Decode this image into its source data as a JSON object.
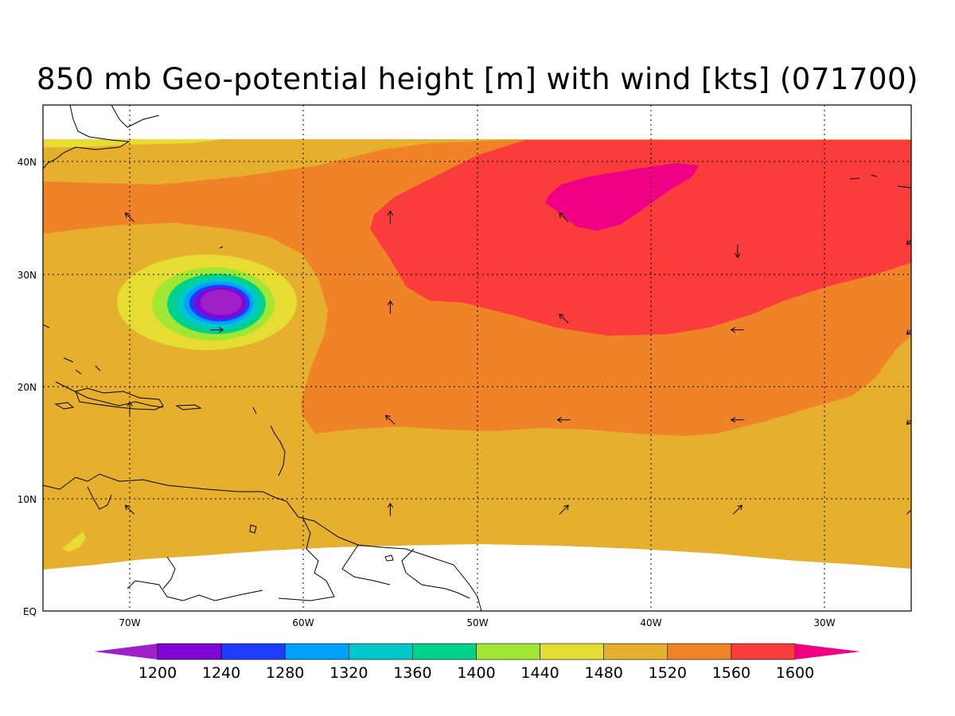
{
  "title": "850 mb Geo-potential height [m] with wind [kts] (071700)",
  "map": {
    "lon_range": [
      -75,
      -25
    ],
    "lat_range": [
      0,
      45
    ],
    "lon_labels": [
      "70W",
      "60W",
      "50W",
      "40W",
      "30W"
    ],
    "lat_labels": [
      "EQ",
      "10N",
      "20N",
      "30N",
      "40N"
    ],
    "grid": "dotted"
  },
  "colorbar": {
    "levels": [
      "1200",
      "1240",
      "1280",
      "1320",
      "1360",
      "1400",
      "1440",
      "1480",
      "1520",
      "1560",
      "1600"
    ],
    "colors": [
      "#a020c8",
      "#7f08d8",
      "#1e3cff",
      "#00a0ff",
      "#00c8c8",
      "#00d28c",
      "#a0e632",
      "#e6dc32",
      "#e6af2d",
      "#f08228",
      "#fa3c3c",
      "#f00082"
    ]
  },
  "features": {
    "low_center": {
      "lon": -65,
      "lat": 27.5,
      "min_height_band": "<1200"
    },
    "high_center": {
      "lon": -42,
      "lat": 37,
      "max_height_band": ">1600"
    }
  },
  "wind_arrows": [
    {
      "lon": -70,
      "lat": 35,
      "dir": "NW"
    },
    {
      "lon": -55,
      "lat": 35,
      "dir": "N"
    },
    {
      "lon": -45,
      "lat": 35,
      "dir": "NW"
    },
    {
      "lon": -35,
      "lat": 32,
      "dir": "S"
    },
    {
      "lon": -25,
      "lat": 33,
      "dir": "SW"
    },
    {
      "lon": -65,
      "lat": 25,
      "dir": "E"
    },
    {
      "lon": -55,
      "lat": 27,
      "dir": "N"
    },
    {
      "lon": -45,
      "lat": 26,
      "dir": "NW"
    },
    {
      "lon": -35,
      "lat": 25,
      "dir": "W"
    },
    {
      "lon": -25,
      "lat": 25,
      "dir": "SW"
    },
    {
      "lon": -70,
      "lat": 18,
      "dir": "N"
    },
    {
      "lon": -55,
      "lat": 17,
      "dir": "NW"
    },
    {
      "lon": -45,
      "lat": 17,
      "dir": "W"
    },
    {
      "lon": -35,
      "lat": 17,
      "dir": "W"
    },
    {
      "lon": -25,
      "lat": 17,
      "dir": "SW"
    },
    {
      "lon": -70,
      "lat": 9,
      "dir": "NW"
    },
    {
      "lon": -55,
      "lat": 9,
      "dir": "N"
    },
    {
      "lon": -45,
      "lat": 9,
      "dir": "NE"
    },
    {
      "lon": -35,
      "lat": 9,
      "dir": "NE"
    },
    {
      "lon": -25,
      "lat": 9,
      "dir": "NE"
    }
  ]
}
